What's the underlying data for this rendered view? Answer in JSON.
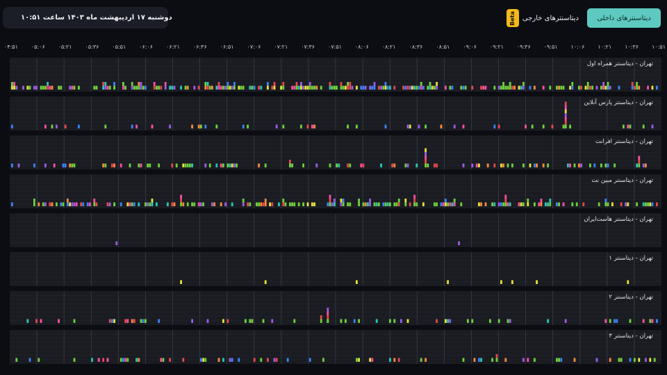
{
  "header": {
    "date_text": "دوشنبه ۱۷ اردیبهشت ماه ۱۴۰۳ ساعت ۱۰:۵۱",
    "tabs": {
      "internal_label": "دیتاسنترهای داخلی",
      "external_label": "دیتاسنترهای خارجی",
      "beta_badge": "Beta"
    }
  },
  "icons": {
    "calendar": "calendar-icon"
  },
  "colors": {
    "accent": "#5ec9c0",
    "beta": "#f3b81c",
    "green": "#6fd13b",
    "red": "#e5484d",
    "purple": "#9b5de5",
    "pink": "#ff4fa3",
    "yellow": "#e8e23a",
    "blue": "#3b82f6",
    "teal": "#2ec4b6",
    "orange": "#ff8a3d"
  },
  "time_axis": [
    "۰۴:۵۱",
    "۰۵:۰۶",
    "۰۵:۲۱",
    "۰۵:۳۶",
    "۰۵:۵۱",
    "۰۶:۰۶",
    "۰۶:۲۱",
    "۰۶:۳۶",
    "۰۶:۵۱",
    "۰۷:۰۶",
    "۰۷:۲۱",
    "۰۷:۳۶",
    "۰۷:۵۱",
    "۰۸:۰۶",
    "۰۸:۲۱",
    "۰۸:۳۶",
    "۰۸:۵۱",
    "۰۹:۰۶",
    "۰۹:۲۱",
    "۰۹:۳۶",
    "۰۹:۵۱",
    "۱۰:۰۶",
    "۱۰:۲۱",
    "۱۰:۳۶",
    "۱۰:۵۱"
  ],
  "panels": [
    {
      "title": "تهران - دیتاسنتر همراه اول",
      "density": 0.62,
      "spikes": []
    },
    {
      "title": "تهران - دیتاسنتر پارس آنلاین",
      "density": 0.14,
      "spikes": [
        [
          0.852,
          7
        ]
      ]
    },
    {
      "title": "تهران - دیتاسنتر افرانت",
      "density": 0.28,
      "spikes": [
        [
          0.637,
          5
        ],
        [
          0.428,
          2
        ],
        [
          0.966,
          3
        ]
      ]
    },
    {
      "title": "تهران - دیتاسنتر مبین نت",
      "density": 0.5,
      "spikes": [
        [
          0.26,
          3
        ],
        [
          0.49,
          3
        ],
        [
          0.62,
          3
        ],
        [
          0.76,
          3
        ]
      ]
    },
    {
      "title": "تهران - دیتاسنتر هاست‌ایران",
      "density": 0.0,
      "spikes": [
        [
          0.162,
          1
        ],
        [
          0.69,
          1
        ]
      ]
    },
    {
      "title": "تهران - دیتاسنتر ۱",
      "density": 0.0,
      "spikes": [
        [
          0.262,
          1
        ],
        [
          0.389,
          1
        ],
        [
          0.53,
          1
        ],
        [
          0.67,
          1
        ],
        [
          0.755,
          1
        ],
        [
          0.77,
          1
        ],
        [
          0.81,
          1
        ],
        [
          0.948,
          1
        ]
      ]
    },
    {
      "title": "تهران - دیتاسنتر ۲",
      "density": 0.2,
      "spikes": [
        [
          0.485,
          4
        ],
        [
          0.476,
          2
        ]
      ]
    },
    {
      "title": "تهران - دیتاسنتر ۳",
      "density": 0.2,
      "spikes": [
        [
          0.746,
          2
        ]
      ]
    }
  ]
}
